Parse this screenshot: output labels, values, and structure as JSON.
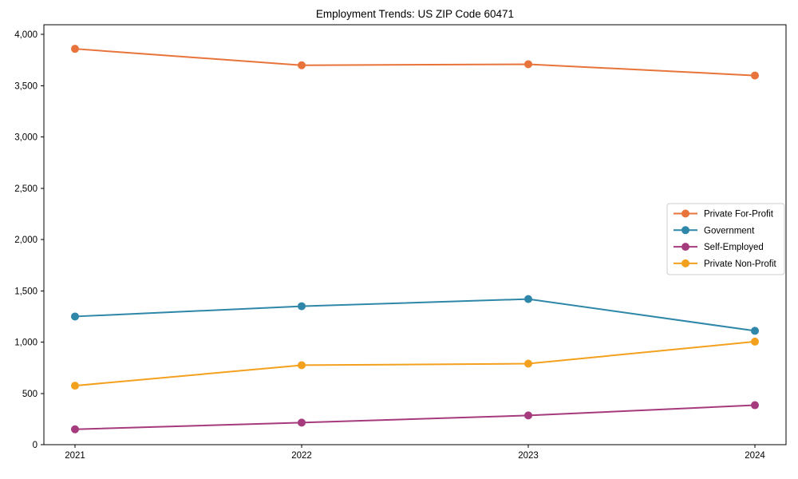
{
  "figure": {
    "background_color": "#ffffff",
    "text_color": "#000000",
    "spine_color": "#000000",
    "legend_border_color": "#cccccc",
    "legend_background_color": "#ffffff"
  },
  "chart_data": {
    "type": "line",
    "title": "Employment Trends: US ZIP Code 60471",
    "xlabel": "",
    "ylabel": "",
    "categories": [
      "2021",
      "2022",
      "2023",
      "2024"
    ],
    "x": [
      2021,
      2022,
      2023,
      2024
    ],
    "series": [
      {
        "name": "Private For-Profit",
        "color": "#E8743B",
        "values": [
          3860,
          3700,
          3710,
          3600
        ]
      },
      {
        "name": "Government",
        "color": "#2E87A8",
        "values": [
          1250,
          1350,
          1420,
          1110
        ]
      },
      {
        "name": "Self-Employed",
        "color": "#A53A7D",
        "values": [
          150,
          215,
          285,
          385
        ]
      },
      {
        "name": "Private Non-Profit",
        "color": "#F2A01E",
        "values": [
          575,
          775,
          790,
          1005
        ]
      }
    ],
    "ylim": [
      0,
      4095
    ],
    "yticks": [
      0,
      500,
      1000,
      1500,
      2000,
      2500,
      3000,
      3500,
      4000
    ],
    "ytick_labels": [
      "0",
      "500",
      "1,000",
      "1,500",
      "2,000",
      "2,500",
      "3,000",
      "3,500",
      "4,000"
    ],
    "grid": false,
    "legend_position": "center-right",
    "marker": "circle",
    "line_width": 2,
    "marker_radius": 5
  }
}
